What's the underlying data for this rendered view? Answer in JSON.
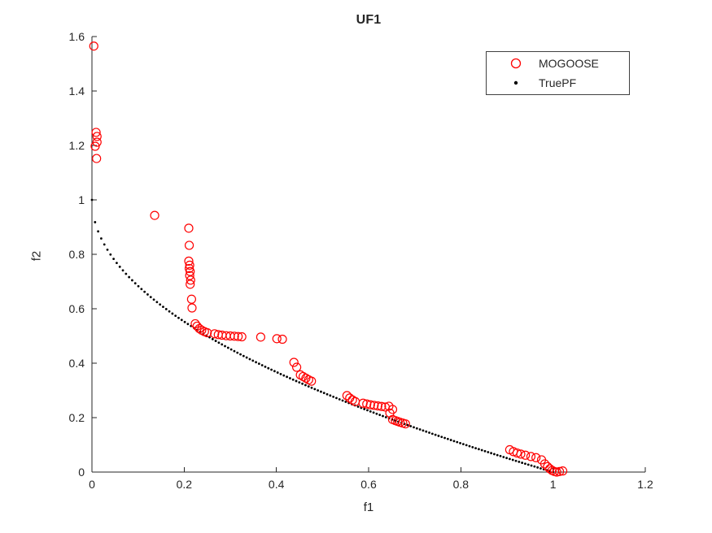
{
  "figure": {
    "background": "#ffffff",
    "axis_color": "#262626",
    "text_color": "#262626"
  },
  "chart_data": {
    "type": "scatter",
    "title": "UF1",
    "xlabel": "f1",
    "ylabel": "f2",
    "xlim": [
      0,
      1.2
    ],
    "ylim": [
      0,
      1.6
    ],
    "grid": false,
    "box": false,
    "tick_direction": "in",
    "x_ticks": [
      0,
      0.2,
      0.4,
      0.6,
      0.8,
      1,
      1.2
    ],
    "x_tick_labels": [
      "0",
      "0.2",
      "0.4",
      "0.6",
      "0.8",
      "1",
      "1.2"
    ],
    "y_ticks": [
      0,
      0.2,
      0.4,
      0.6,
      0.8,
      1,
      1.2,
      1.4,
      1.6
    ],
    "y_tick_labels": [
      "0",
      "0.2",
      "0.4",
      "0.6",
      "0.8",
      "1",
      "1.2",
      "1.4",
      "1.6"
    ],
    "legend": {
      "position": "northeast",
      "border": true
    },
    "series": [
      {
        "name": "MOGOOSE",
        "marker": "open-circle",
        "color": "#ff0000",
        "marker_radius": 5,
        "points": [
          [
            0.004,
            1.565
          ],
          [
            0.009,
            1.248
          ],
          [
            0.011,
            1.233
          ],
          [
            0.011,
            1.212
          ],
          [
            0.007,
            1.197
          ],
          [
            0.01,
            1.152
          ],
          [
            0.136,
            0.943
          ],
          [
            0.21,
            0.896
          ],
          [
            0.211,
            0.833
          ],
          [
            0.21,
            0.775
          ],
          [
            0.212,
            0.76
          ],
          [
            0.211,
            0.748
          ],
          [
            0.213,
            0.737
          ],
          [
            0.212,
            0.722
          ],
          [
            0.214,
            0.705
          ],
          [
            0.213,
            0.69
          ],
          [
            0.216,
            0.635
          ],
          [
            0.217,
            0.603
          ],
          [
            0.224,
            0.545
          ],
          [
            0.228,
            0.536
          ],
          [
            0.233,
            0.527
          ],
          [
            0.238,
            0.521
          ],
          [
            0.244,
            0.516
          ],
          [
            0.25,
            0.512
          ],
          [
            0.266,
            0.508
          ],
          [
            0.274,
            0.505
          ],
          [
            0.282,
            0.503
          ],
          [
            0.291,
            0.501
          ],
          [
            0.3,
            0.5
          ],
          [
            0.309,
            0.499
          ],
          [
            0.317,
            0.498
          ],
          [
            0.325,
            0.497
          ],
          [
            0.366,
            0.496
          ],
          [
            0.401,
            0.49
          ],
          [
            0.413,
            0.488
          ],
          [
            0.438,
            0.403
          ],
          [
            0.444,
            0.385
          ],
          [
            0.452,
            0.357
          ],
          [
            0.458,
            0.351
          ],
          [
            0.464,
            0.345
          ],
          [
            0.47,
            0.339
          ],
          [
            0.476,
            0.334
          ],
          [
            0.553,
            0.281
          ],
          [
            0.559,
            0.272
          ],
          [
            0.565,
            0.265
          ],
          [
            0.571,
            0.259
          ],
          [
            0.588,
            0.253
          ],
          [
            0.596,
            0.25
          ],
          [
            0.604,
            0.247
          ],
          [
            0.612,
            0.245
          ],
          [
            0.62,
            0.243
          ],
          [
            0.628,
            0.241
          ],
          [
            0.636,
            0.239
          ],
          [
            0.644,
            0.242
          ],
          [
            0.652,
            0.23
          ],
          [
            0.646,
            0.217
          ],
          [
            0.652,
            0.193
          ],
          [
            0.658,
            0.189
          ],
          [
            0.663,
            0.186
          ],
          [
            0.668,
            0.183
          ],
          [
            0.674,
            0.18
          ],
          [
            0.68,
            0.177
          ],
          [
            0.906,
            0.082
          ],
          [
            0.914,
            0.075
          ],
          [
            0.922,
            0.07
          ],
          [
            0.93,
            0.066
          ],
          [
            0.94,
            0.062
          ],
          [
            0.952,
            0.057
          ],
          [
            0.963,
            0.053
          ],
          [
            0.975,
            0.045
          ],
          [
            0.982,
            0.03
          ],
          [
            0.988,
            0.02
          ],
          [
            0.993,
            0.012
          ],
          [
            0.998,
            0.006
          ],
          [
            1.003,
            0.002
          ],
          [
            1.008,
            0.0
          ],
          [
            1.014,
            0.002
          ],
          [
            1.021,
            0.004
          ]
        ]
      },
      {
        "name": "TruePF",
        "marker": "dot",
        "color": "#000000",
        "marker_radius": 1.4,
        "formula": "f2 = 1 - sqrt(f1)",
        "f1_range": [
          0,
          1
        ],
        "n_points": 150
      }
    ]
  }
}
